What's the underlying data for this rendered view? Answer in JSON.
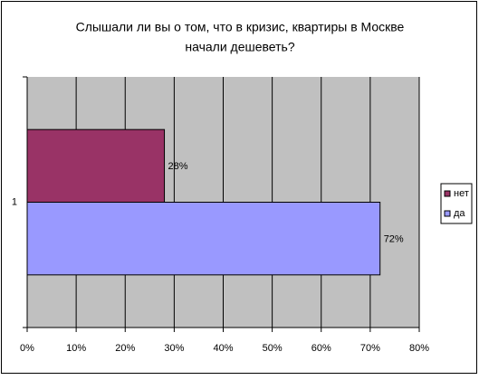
{
  "chart_data": {
    "type": "bar",
    "orientation": "horizontal",
    "title": [
      "Слышали ли вы о том, что в кризис, квартиры в Москве",
      "начали дешеветь?"
    ],
    "categories": [
      "1"
    ],
    "series": [
      {
        "name": "нет",
        "color": "#993366",
        "values": [
          28
        ],
        "value_labels": [
          "28%"
        ]
      },
      {
        "name": "да",
        "color": "#9999ff",
        "values": [
          72
        ],
        "value_labels": [
          "72%"
        ]
      }
    ],
    "xlim": [
      0,
      80
    ],
    "xticks": [
      {
        "value": 0,
        "label": "0%"
      },
      {
        "value": 10,
        "label": "10%"
      },
      {
        "value": 20,
        "label": "20%"
      },
      {
        "value": 30,
        "label": "30%"
      },
      {
        "value": 40,
        "label": "40%"
      },
      {
        "value": 50,
        "label": "50%"
      },
      {
        "value": 60,
        "label": "60%"
      },
      {
        "value": 70,
        "label": "70%"
      },
      {
        "value": 80,
        "label": "80%"
      }
    ],
    "grid": true,
    "legend": "right"
  }
}
